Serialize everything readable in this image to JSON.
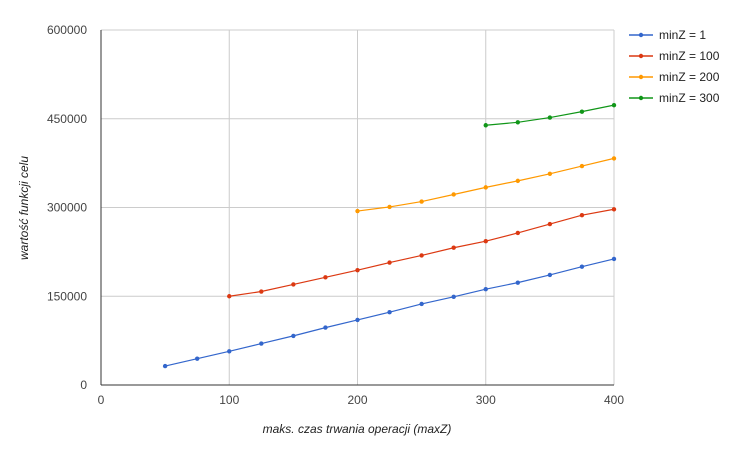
{
  "chart_data": {
    "type": "line",
    "title": "",
    "xlabel": "maks. czas trwania operacji (maxZ)",
    "ylabel": "wartość funkcji celu",
    "xlim": [
      0,
      400
    ],
    "ylim": [
      0,
      600000
    ],
    "x_ticks": [
      0,
      100,
      200,
      300,
      400
    ],
    "y_ticks": [
      0,
      150000,
      300000,
      450000,
      600000
    ],
    "grid": true,
    "legend_position": "right",
    "series": [
      {
        "name": "minZ = 1",
        "color": "#3366cc",
        "x": [
          50,
          75,
          100,
          125,
          150,
          175,
          200,
          225,
          250,
          275,
          300,
          325,
          350,
          375,
          400
        ],
        "values": [
          32000,
          44500,
          57000,
          70000,
          83000,
          97000,
          110000,
          123000,
          137000,
          149000,
          162000,
          173000,
          186000,
          200000,
          213000
        ]
      },
      {
        "name": "minZ = 100",
        "color": "#dc3912",
        "x": [
          100,
          125,
          150,
          175,
          200,
          225,
          250,
          275,
          300,
          325,
          350,
          375,
          400
        ],
        "values": [
          150000,
          158000,
          170000,
          182000,
          194000,
          207000,
          219000,
          232000,
          243000,
          257000,
          272000,
          287000,
          297000
        ]
      },
      {
        "name": "minZ = 200",
        "color": "#ff9900",
        "x": [
          200,
          225,
          250,
          275,
          300,
          325,
          350,
          375,
          400
        ],
        "values": [
          294000,
          301000,
          310000,
          322000,
          334000,
          345000,
          357000,
          370000,
          383000
        ]
      },
      {
        "name": "minZ = 300",
        "color": "#109618",
        "x": [
          300,
          325,
          350,
          375,
          400
        ],
        "values": [
          439000,
          444000,
          452000,
          462000,
          473000
        ]
      }
    ]
  }
}
